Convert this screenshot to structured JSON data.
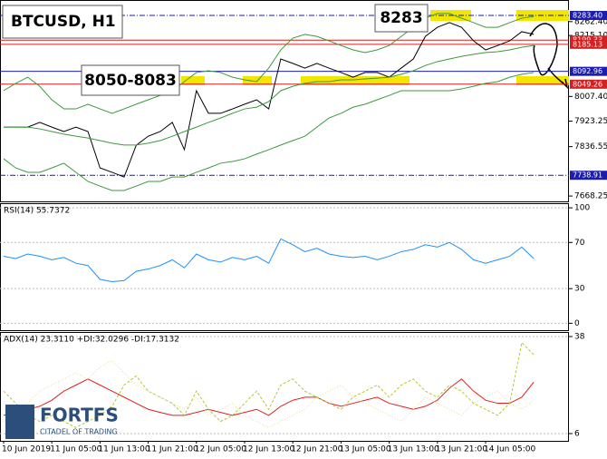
{
  "chart_data": [
    {
      "type": "line",
      "title": "BTCUSD, H1",
      "annotations": [
        "8283",
        "8050-8083"
      ],
      "ylim": [
        7650,
        8336
      ],
      "yticks": [
        {
          "value": 8262.4,
          "label": "8262.40"
        },
        {
          "value": 8215.1,
          "label": "8215.10"
        },
        {
          "value": 8007.4,
          "label": "8007.40"
        },
        {
          "value": 7923.25,
          "label": "7923.25"
        },
        {
          "value": 7836.55,
          "label": "7836.55"
        },
        {
          "value": 7668.25,
          "label": "7668.25"
        }
      ],
      "levels": [
        {
          "value": 8283.4,
          "label": "8283.40",
          "color": "#1c1cb0",
          "dashed": true
        },
        {
          "value": 8199.33,
          "label": "8199.33",
          "color": "#d42020",
          "dashed": false
        },
        {
          "value": 8185.13,
          "label": "8185.13",
          "color": "#d42020",
          "dashed": false
        },
        {
          "value": 8092.96,
          "label": "8092.96",
          "color": "#1c1cb0",
          "dashed": false
        },
        {
          "value": 8049.26,
          "label": "8049.26",
          "color": "#d42020",
          "dashed": false
        },
        {
          "value": 7738.91,
          "label": "7738.91",
          "color": "#1c1cb0",
          "dashed": true
        }
      ],
      "series": [
        {
          "color": "#000000",
          "values": [
            7903,
            7903,
            7903,
            7919,
            7903,
            7888,
            7903,
            7888,
            7764,
            7749,
            7733,
            7841,
            7872,
            7888,
            7919,
            7826,
            8027,
            7950,
            7950,
            7965,
            7981,
            7996,
            7965,
            8135,
            8120,
            8104,
            8120,
            8104,
            8089,
            8073,
            8089,
            8089,
            8073,
            8104,
            8135,
            8212,
            8243,
            8259,
            8243,
            8197,
            8166,
            8181,
            8197,
            8228,
            8219
          ]
        },
        {
          "color": "#3c9a3c",
          "values": [
            8027,
            8052,
            8073,
            8042,
            7996,
            7965,
            7965,
            7981,
            7965,
            7950,
            7965,
            7981,
            7996,
            8011,
            8027,
            8058,
            8089,
            8095,
            8089,
            8073,
            8064,
            8058,
            8104,
            8166,
            8206,
            8219,
            8212,
            8197,
            8181,
            8166,
            8157,
            8166,
            8181,
            8212,
            8243,
            8274,
            8290,
            8290,
            8274,
            8259,
            8243,
            8243,
            8259,
            8274,
            8280
          ]
        },
        {
          "color": "#3c9a3c",
          "values": [
            7903,
            7903,
            7903,
            7897,
            7888,
            7879,
            7872,
            7866,
            7857,
            7848,
            7842,
            7842,
            7848,
            7857,
            7872,
            7888,
            7903,
            7919,
            7934,
            7950,
            7965,
            7971,
            7990,
            8027,
            8042,
            8052,
            8058,
            8058,
            8064,
            8064,
            8067,
            8070,
            8073,
            8083,
            8095,
            8113,
            8126,
            8135,
            8144,
            8151,
            8157,
            8160,
            8166,
            8175,
            8181
          ]
        },
        {
          "color": "#3c9a3c",
          "values": [
            7795,
            7764,
            7749,
            7749,
            7764,
            7780,
            7749,
            7718,
            7702,
            7687,
            7687,
            7702,
            7718,
            7718,
            7733,
            7733,
            7749,
            7764,
            7780,
            7786,
            7795,
            7811,
            7826,
            7842,
            7857,
            7872,
            7903,
            7934,
            7950,
            7971,
            7981,
            7996,
            8011,
            8027,
            8027,
            8027,
            8027,
            8027,
            8033,
            8042,
            8052,
            8058,
            8073,
            8083,
            8089
          ]
        }
      ]
    },
    {
      "type": "line",
      "title": "RSI(14) 55.7372",
      "ylim": [
        -6,
        104
      ],
      "yticks": [
        100,
        70,
        30,
        0
      ],
      "series": [
        {
          "color": "#1e90ff",
          "values": [
            58,
            56,
            60,
            58,
            55,
            57,
            52,
            50,
            38,
            36,
            37,
            45,
            47,
            50,
            55,
            48,
            60,
            55,
            53,
            57,
            55,
            58,
            52,
            73,
            68,
            62,
            65,
            60,
            58,
            57,
            58,
            55,
            58,
            62,
            64,
            68,
            66,
            70,
            64,
            55,
            52,
            55,
            58,
            66,
            56
          ]
        }
      ]
    },
    {
      "type": "line",
      "title": "ADX(14) 23.3110 +DI:32.0296 -DI:17.3132",
      "ylim": [
        3.6,
        39.5
      ],
      "yticks": [
        38,
        6
      ],
      "categories": [
        "10 Jun 2019",
        null,
        null,
        null,
        "11 Jun 05:00",
        null,
        null,
        null,
        "11 Jun 13:00",
        null,
        null,
        null,
        "11 Jun 21:00",
        null,
        null,
        null,
        "12 Jun 05:00",
        null,
        null,
        null,
        "12 Jun 13:00",
        null,
        null,
        null,
        "12 Jun 21:00",
        null,
        null,
        null,
        "13 Jun 05:00",
        null,
        null,
        null,
        "13 Jun 13:00",
        null,
        null,
        null,
        "13 Jun 21:00",
        null,
        null,
        null,
        "14 Jun 05:00",
        null,
        null,
        null,
        null
      ],
      "series": [
        {
          "color": "#e02020",
          "values": [
            12,
            13,
            14,
            15,
            17,
            20,
            22,
            24,
            22,
            20,
            18,
            16,
            14,
            13,
            12,
            12,
            13,
            14,
            13,
            12,
            13,
            14,
            12,
            15,
            17,
            18,
            18,
            16,
            15,
            16,
            17,
            18,
            16,
            15,
            14,
            15,
            17,
            21,
            24,
            20,
            17,
            16,
            16,
            18,
            23
          ]
        },
        {
          "color": "#b5c832",
          "values": [
            20,
            16,
            12,
            10,
            12,
            10,
            8,
            10,
            12,
            15,
            22,
            25,
            20,
            18,
            16,
            12,
            20,
            14,
            10,
            12,
            16,
            20,
            14,
            22,
            24,
            20,
            18,
            16,
            14,
            18,
            20,
            22,
            18,
            22,
            24,
            20,
            18,
            22,
            20,
            16,
            14,
            12,
            16,
            36,
            32
          ]
        },
        {
          "color": "#e8d9a0",
          "values": [
            10,
            12,
            16,
            20,
            22,
            24,
            26,
            24,
            28,
            30,
            26,
            22,
            20,
            18,
            16,
            14,
            18,
            12,
            14,
            16,
            12,
            10,
            8,
            10,
            12,
            14,
            18,
            20,
            22,
            18,
            16,
            14,
            12,
            10,
            14,
            18,
            16,
            14,
            12,
            16,
            18,
            20,
            16,
            14,
            17
          ]
        }
      ]
    }
  ],
  "logo": {
    "name": "FORTFS",
    "tagline": "CITADEL OF TRADING"
  }
}
